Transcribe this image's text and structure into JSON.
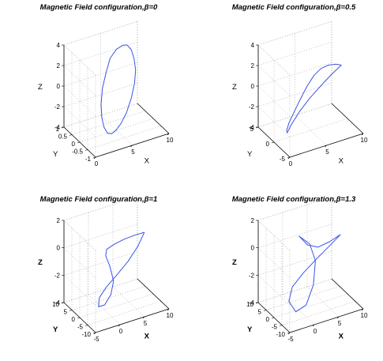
{
  "figure": {
    "chart_data": [
      {
        "type": "line3d",
        "title": "Magnetic Field configuration,β=0",
        "xlabel": "X",
        "ylabel": "Y",
        "zlabel": "Z",
        "axis_label_bold": false,
        "xlim": [
          0,
          10
        ],
        "ylim": [
          -1,
          1
        ],
        "zlim": [
          -4,
          4
        ],
        "xticks": [
          0,
          5,
          10
        ],
        "yticks": [
          -1,
          -0.5,
          0,
          0.5,
          1
        ],
        "zticks": [
          -4,
          -2,
          0,
          2,
          4
        ],
        "grid": true,
        "series": [
          {
            "color": "#3b55e6",
            "points": [
              [
                5,
                0,
                3.9
              ],
              [
                6.2,
                0.15,
                3.8
              ],
              [
                7.2,
                0.35,
                3.3
              ],
              [
                8.1,
                0.5,
                2.4
              ],
              [
                8.7,
                0.6,
                1.2
              ],
              [
                9.0,
                0.65,
                0
              ],
              [
                8.8,
                0.62,
                -1.2
              ],
              [
                8.1,
                0.5,
                -2.3
              ],
              [
                7.0,
                0.3,
                -3.2
              ],
              [
                5.8,
                0.1,
                -3.7
              ],
              [
                4.8,
                -0.05,
                -3.9
              ],
              [
                3.8,
                -0.25,
                -3.7
              ],
              [
                2.8,
                -0.45,
                -3.1
              ],
              [
                2.0,
                -0.6,
                -2.1
              ],
              [
                1.5,
                -0.7,
                -0.9
              ],
              [
                1.4,
                -0.7,
                0.4
              ],
              [
                1.8,
                -0.6,
                1.7
              ],
              [
                2.6,
                -0.45,
                2.8
              ],
              [
                3.7,
                -0.2,
                3.6
              ],
              [
                5,
                0,
                3.9
              ]
            ]
          }
        ]
      },
      {
        "type": "line3d",
        "title": "Magnetic Field configuration,β=0.5",
        "xlabel": "X",
        "ylabel": "Y",
        "zlabel": "Z",
        "axis_label_bold": false,
        "xlim": [
          0,
          10
        ],
        "ylim": [
          -5,
          5
        ],
        "zlim": [
          -4,
          4
        ],
        "xticks": [
          0,
          5,
          10
        ],
        "yticks": [
          -5,
          0,
          5
        ],
        "zticks": [
          -4,
          -2,
          0,
          2,
          4
        ],
        "grid": true,
        "series": [
          {
            "color": "#3b55e6",
            "points": [
              [
                9.6,
                1.0,
                1.0
              ],
              [
                8.8,
                0.9,
                1.3
              ],
              [
                7.6,
                0.5,
                1.6
              ],
              [
                6.4,
                0,
                1.7
              ],
              [
                5.2,
                -0.6,
                1.5
              ],
              [
                4.0,
                -1.2,
                0.9
              ],
              [
                2.9,
                -1.6,
                0
              ],
              [
                2.1,
                -1.5,
                -1.1
              ],
              [
                1.6,
                -1.0,
                -2.2
              ],
              [
                1.5,
                -0.5,
                -3.1
              ],
              [
                1.8,
                0,
                -3.5
              ],
              [
                2.6,
                0.5,
                -3.0
              ],
              [
                3.9,
                1.0,
                -2.2
              ],
              [
                5.4,
                1.2,
                -1.3
              ],
              [
                6.9,
                1.3,
                -0.5
              ],
              [
                8.3,
                1.2,
                0.3
              ],
              [
                9.6,
                1.0,
                1.0
              ]
            ]
          }
        ]
      },
      {
        "type": "line3d",
        "title": "Magnetic Field configuration,β=1",
        "xlabel": "X",
        "ylabel": "Y",
        "zlabel": "Z",
        "axis_label_bold": true,
        "xlim": [
          -5,
          10
        ],
        "ylim": [
          -10,
          10
        ],
        "zlim": [
          -4,
          2
        ],
        "xticks": [
          -5,
          0,
          5,
          10
        ],
        "yticks": [
          -10,
          -5,
          0,
          5,
          10
        ],
        "zticks": [
          -4,
          -2,
          0,
          2
        ],
        "grid": true,
        "series": [
          {
            "color": "#3b55e6",
            "points": [
              [
                8.2,
                0,
                0.7
              ],
              [
                6.5,
                0.8,
                0.6
              ],
              [
                4.5,
                1.2,
                0.5
              ],
              [
                2.5,
                1.3,
                0.35
              ],
              [
                0.8,
                1.0,
                0.2
              ],
              [
                0.3,
                0,
                -0.1
              ],
              [
                0.8,
                -1.0,
                -0.8
              ],
              [
                1.2,
                -2.2,
                -1.8
              ],
              [
                0.6,
                -2.4,
                -2.7
              ],
              [
                -0.5,
                -1.8,
                -3.4
              ],
              [
                -1.3,
                -0.4,
                -3.6
              ],
              [
                -0.8,
                0.6,
                -3.1
              ],
              [
                0.6,
                0.6,
                -2.5
              ],
              [
                2.6,
                0.2,
                -1.8
              ],
              [
                4.8,
                -0.2,
                -1.0
              ],
              [
                6.8,
                -0.3,
                -0.1
              ],
              [
                8.2,
                0,
                0.7
              ]
            ]
          }
        ]
      },
      {
        "type": "line3d",
        "title": "Magnetic Field configuration,β=1.3",
        "xlabel": "X",
        "ylabel": "Y",
        "zlabel": "Z",
        "axis_label_bold": true,
        "xlim": [
          -5,
          10
        ],
        "ylim": [
          -10,
          10
        ],
        "zlim": [
          -4,
          2
        ],
        "xticks": [
          -5,
          0,
          5,
          10
        ],
        "yticks": [
          -10,
          -5,
          0,
          5,
          10
        ],
        "zticks": [
          -4,
          -2,
          0,
          2
        ],
        "grid": true,
        "series": [
          {
            "color": "#3b55e6",
            "points": [
              [
                8.6,
                0,
                0.5
              ],
              [
                6.4,
                0.2,
                0.2
              ],
              [
                4.2,
                0.7,
                0
              ],
              [
                2.3,
                1.5,
                0.3
              ],
              [
                0.9,
                2.4,
                1.0
              ],
              [
                2.6,
                1.0,
                0.4
              ],
              [
                3.2,
                -0.8,
                -0.7
              ],
              [
                2.3,
                -2.3,
                -2.2
              ],
              [
                0.6,
                -3.0,
                -3.4
              ],
              [
                -1.2,
                -2.0,
                -3.8
              ],
              [
                -1.9,
                0.2,
                -3.2
              ],
              [
                -0.8,
                1.4,
                -2.4
              ],
              [
                1.4,
                1.2,
                -1.6
              ],
              [
                4.0,
                0.7,
                -0.8
              ],
              [
                6.5,
                0.3,
                -0.1
              ],
              [
                8.6,
                0,
                0.5
              ]
            ]
          }
        ]
      }
    ]
  }
}
